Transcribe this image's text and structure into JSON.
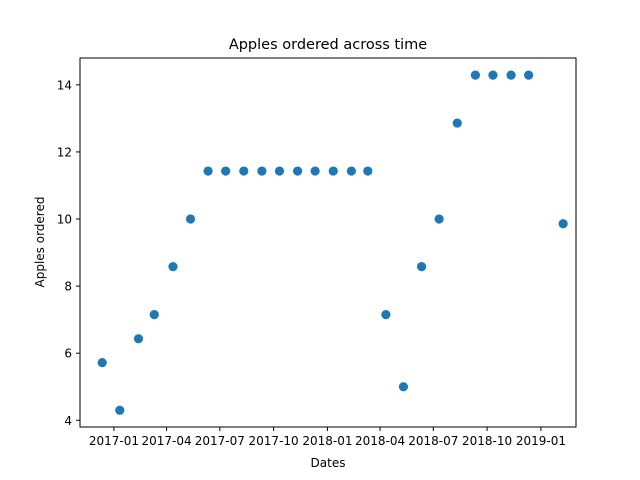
{
  "chart_data": {
    "type": "scatter",
    "title": "Apples ordered across time",
    "xlabel": "Dates",
    "ylabel": "Apples ordered",
    "x_type": "date",
    "xlim": [
      "2016-11-04",
      "2019-03-02"
    ],
    "ylim": [
      3.8,
      14.8
    ],
    "x_ticks": [
      "2017-01-01",
      "2017-04-01",
      "2017-07-01",
      "2017-10-01",
      "2018-01-01",
      "2018-04-01",
      "2018-07-01",
      "2018-10-01",
      "2019-01-01"
    ],
    "x_tick_labels": [
      "2017-01",
      "2017-04",
      "2017-07",
      "2017-10",
      "2018-01",
      "2018-04",
      "2018-07",
      "2018-10",
      "2019-01"
    ],
    "y_ticks": [
      4,
      6,
      8,
      10,
      12,
      14
    ],
    "grid": false,
    "legend": "none",
    "color": "#1f77b4",
    "points": [
      {
        "x": "2016-12-12",
        "y": 5.72
      },
      {
        "x": "2017-01-11",
        "y": 4.3
      },
      {
        "x": "2017-02-12",
        "y": 6.43
      },
      {
        "x": "2017-03-11",
        "y": 7.15
      },
      {
        "x": "2017-04-12",
        "y": 8.58
      },
      {
        "x": "2017-05-12",
        "y": 10.0
      },
      {
        "x": "2017-06-11",
        "y": 11.43
      },
      {
        "x": "2017-07-11",
        "y": 11.43
      },
      {
        "x": "2017-08-11",
        "y": 11.43
      },
      {
        "x": "2017-09-11",
        "y": 11.43
      },
      {
        "x": "2017-10-11",
        "y": 11.43
      },
      {
        "x": "2017-11-11",
        "y": 11.43
      },
      {
        "x": "2017-12-11",
        "y": 11.43
      },
      {
        "x": "2018-01-11",
        "y": 11.43
      },
      {
        "x": "2018-02-11",
        "y": 11.43
      },
      {
        "x": "2018-03-11",
        "y": 11.43
      },
      {
        "x": "2018-04-11",
        "y": 7.15
      },
      {
        "x": "2018-05-11",
        "y": 5.0
      },
      {
        "x": "2018-06-11",
        "y": 8.58
      },
      {
        "x": "2018-07-11",
        "y": 10.0
      },
      {
        "x": "2018-08-11",
        "y": 12.86
      },
      {
        "x": "2018-09-11",
        "y": 14.29
      },
      {
        "x": "2018-10-11",
        "y": 14.29
      },
      {
        "x": "2018-11-11",
        "y": 14.29
      },
      {
        "x": "2018-12-11",
        "y": 14.29
      },
      {
        "x": "2019-02-08",
        "y": 9.86
      }
    ]
  }
}
